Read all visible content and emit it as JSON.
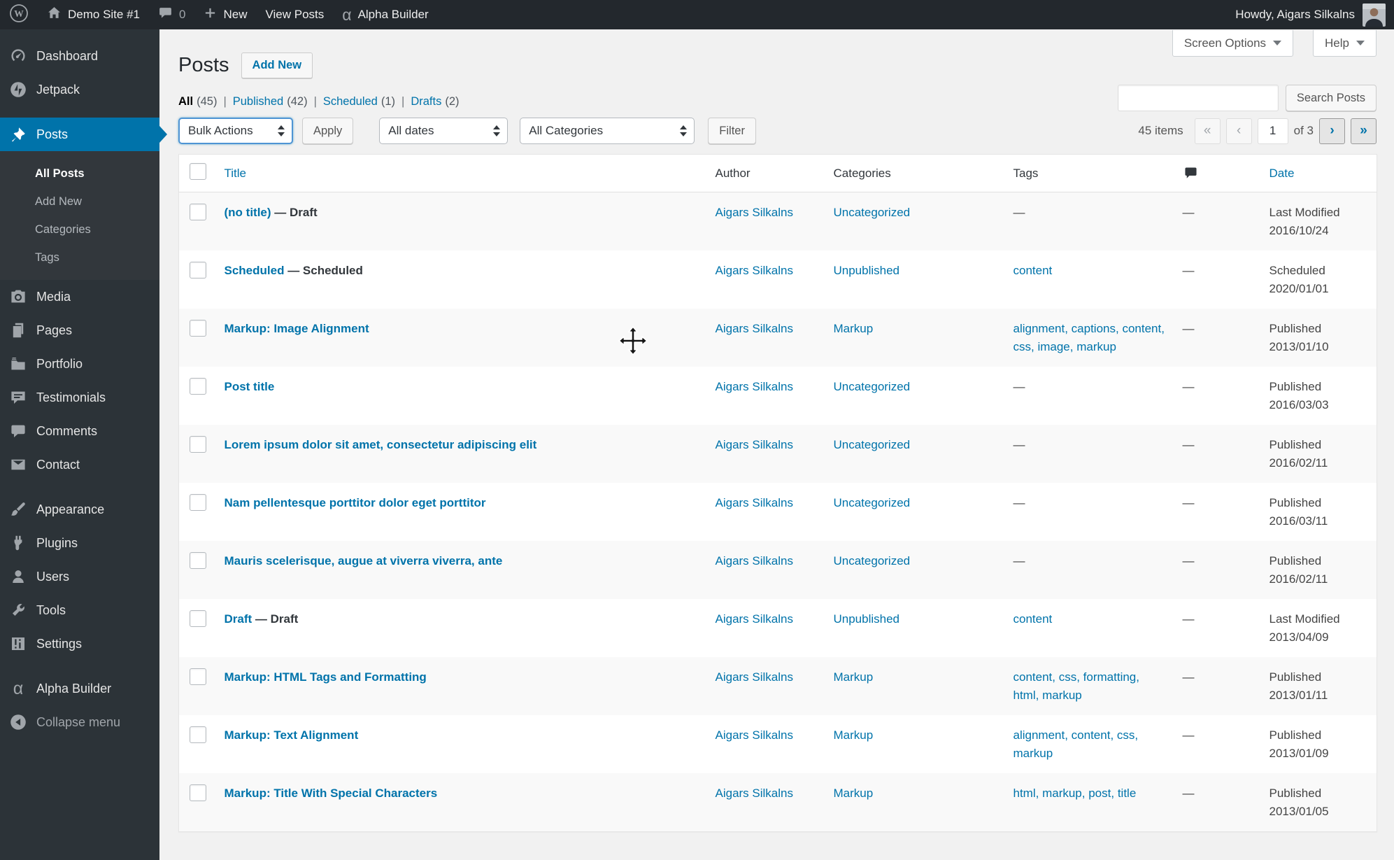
{
  "admin_bar": {
    "wp_logo_letter": "W",
    "site_name": "Demo Site #1",
    "comment_count": "0",
    "new_label": "New",
    "view_posts_label": "View Posts",
    "builder_label": "Alpha Builder",
    "howdy_text": "Howdy, Aigars Silkalns"
  },
  "sidebar": {
    "items": [
      {
        "label": "Dashboard",
        "icon": "dashboard-icon"
      },
      {
        "label": "Jetpack",
        "icon": "jetpack-icon",
        "group_end": true
      },
      {
        "label": "Posts",
        "icon": "pushpin-icon",
        "active": true,
        "submenu": [
          {
            "label": "All Posts",
            "current": true
          },
          {
            "label": "Add New"
          },
          {
            "label": "Categories"
          },
          {
            "label": "Tags"
          }
        ]
      },
      {
        "label": "Media",
        "icon": "media-icon"
      },
      {
        "label": "Pages",
        "icon": "pages-icon"
      },
      {
        "label": "Portfolio",
        "icon": "portfolio-icon"
      },
      {
        "label": "Testimonials",
        "icon": "testimonials-icon"
      },
      {
        "label": "Comments",
        "icon": "comments-icon"
      },
      {
        "label": "Contact",
        "icon": "contact-icon",
        "group_end": true
      },
      {
        "label": "Appearance",
        "icon": "appearance-icon"
      },
      {
        "label": "Plugins",
        "icon": "plugins-icon"
      },
      {
        "label": "Users",
        "icon": "users-icon"
      },
      {
        "label": "Tools",
        "icon": "tools-icon"
      },
      {
        "label": "Settings",
        "icon": "settings-icon",
        "group_end": true
      },
      {
        "label": "Alpha Builder",
        "icon": "alpha-icon"
      },
      {
        "label": "Collapse menu",
        "icon": "collapse-icon",
        "muted": true
      }
    ]
  },
  "page": {
    "title": "Posts",
    "add_new_label": "Add New",
    "screen_options_label": "Screen Options",
    "help_label": "Help",
    "search_value": "",
    "search_button_label": "Search Posts"
  },
  "views": [
    {
      "label": "All",
      "count": "(45)",
      "current": true
    },
    {
      "label": "Published",
      "count": "(42)"
    },
    {
      "label": "Scheduled",
      "count": "(1)"
    },
    {
      "label": "Drafts",
      "count": "(2)"
    }
  ],
  "tablenav": {
    "bulk_actions_value": "Bulk Actions",
    "apply_label": "Apply",
    "dates_value": "All dates",
    "categories_value": "All Categories",
    "filter_label": "Filter",
    "items_count": "45 items",
    "pagination": {
      "first": "«",
      "prev": "‹",
      "current_page": "1",
      "of_label": "of 3",
      "next": "›",
      "last": "»"
    }
  },
  "table": {
    "columns": {
      "title": "Title",
      "author": "Author",
      "categories": "Categories",
      "tags": "Tags",
      "date": "Date"
    },
    "empty_value": "—",
    "rows": [
      {
        "title": "(no title)",
        "state": "Draft",
        "author": "Aigars Silkalns",
        "category": "Uncategorized",
        "tags": [],
        "comments": "—",
        "date_status": "Last Modified",
        "date": "2016/10/24"
      },
      {
        "title": "Scheduled",
        "state": "Scheduled",
        "author": "Aigars Silkalns",
        "category": "Unpublished",
        "tags": [
          "content"
        ],
        "comments": "—",
        "date_status": "Scheduled",
        "date": "2020/01/01"
      },
      {
        "title": "Markup: Image Alignment",
        "state": "",
        "author": "Aigars Silkalns",
        "category": "Markup",
        "tags": [
          "alignment",
          "captions",
          "content",
          "css",
          "image",
          "markup"
        ],
        "comments": "—",
        "date_status": "Published",
        "date": "2013/01/10"
      },
      {
        "title": "Post title",
        "state": "",
        "author": "Aigars Silkalns",
        "category": "Uncategorized",
        "tags": [],
        "comments": "—",
        "date_status": "Published",
        "date": "2016/03/03"
      },
      {
        "title": "Lorem ipsum dolor sit amet, consectetur adipiscing elit",
        "state": "",
        "author": "Aigars Silkalns",
        "category": "Uncategorized",
        "tags": [],
        "comments": "—",
        "date_status": "Published",
        "date": "2016/02/11"
      },
      {
        "title": "Nam pellentesque porttitor dolor eget porttitor",
        "state": "",
        "author": "Aigars Silkalns",
        "category": "Uncategorized",
        "tags": [],
        "comments": "—",
        "date_status": "Published",
        "date": "2016/03/11"
      },
      {
        "title": "Mauris scelerisque, augue at viverra viverra, ante",
        "state": "",
        "author": "Aigars Silkalns",
        "category": "Uncategorized",
        "tags": [],
        "comments": "—",
        "date_status": "Published",
        "date": "2016/02/11"
      },
      {
        "title": "Draft",
        "state": "Draft",
        "author": "Aigars Silkalns",
        "category": "Unpublished",
        "tags": [
          "content"
        ],
        "comments": "—",
        "date_status": "Last Modified",
        "date": "2013/04/09"
      },
      {
        "title": "Markup: HTML Tags and Formatting",
        "state": "",
        "author": "Aigars Silkalns",
        "category": "Markup",
        "tags": [
          "content",
          "css",
          "formatting",
          "html",
          "markup"
        ],
        "comments": "—",
        "date_status": "Published",
        "date": "2013/01/11"
      },
      {
        "title": "Markup: Text Alignment",
        "state": "",
        "author": "Aigars Silkalns",
        "category": "Markup",
        "tags": [
          "alignment",
          "content",
          "css",
          "markup"
        ],
        "comments": "—",
        "date_status": "Published",
        "date": "2013/01/09"
      },
      {
        "title": "Markup: Title With Special Characters",
        "state": "",
        "author": "Aigars Silkalns",
        "category": "Markup",
        "tags": [
          "html",
          "markup",
          "post",
          "title"
        ],
        "comments": "—",
        "date_status": "Published",
        "date": "2013/01/05"
      }
    ]
  }
}
